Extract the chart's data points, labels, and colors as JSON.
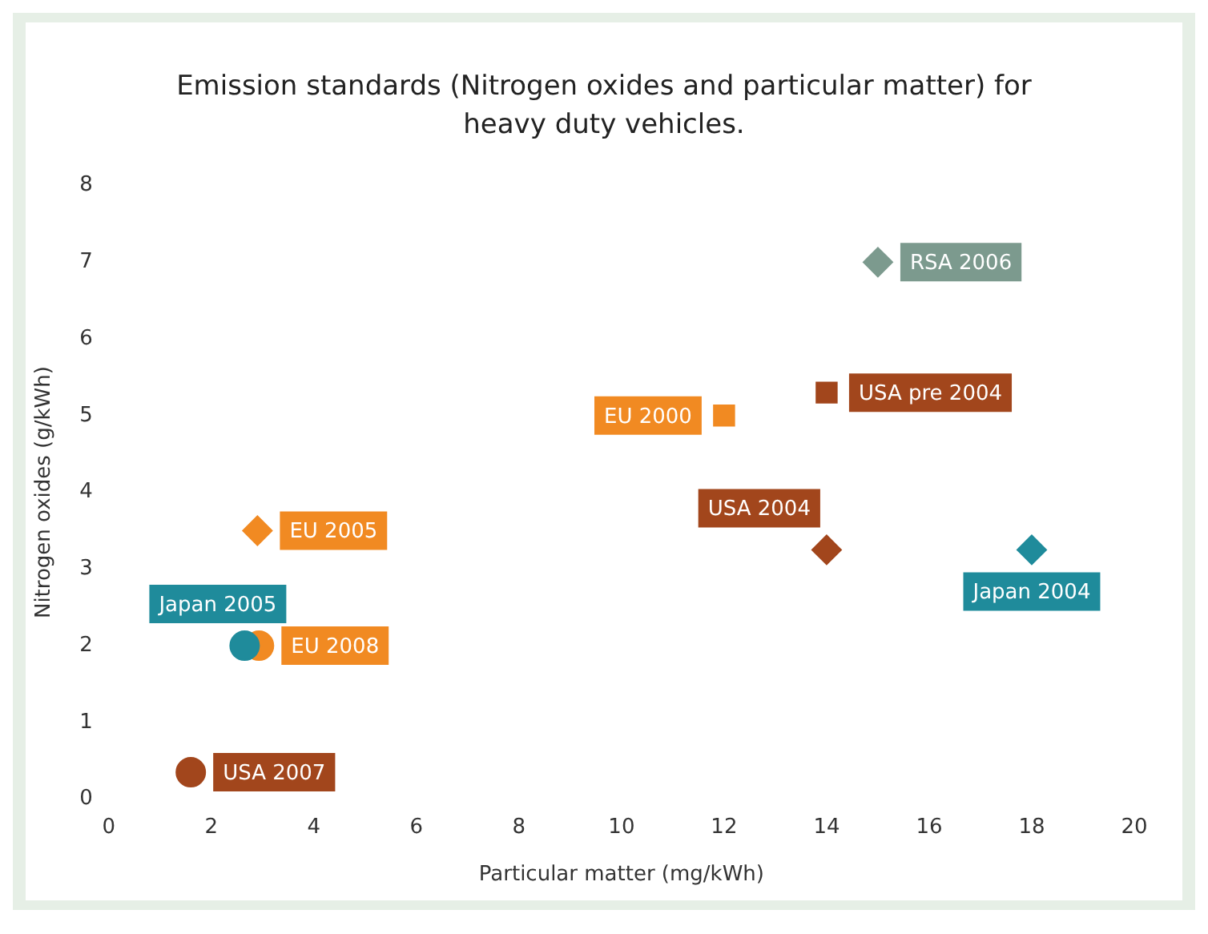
{
  "chart_data": {
    "type": "scatter",
    "title": "Emission standards (Nitrogen oxides and particular matter) for heavy duty vehicles.",
    "xlabel": "Particular matter (mg/kWh)",
    "ylabel": "Nitrogen oxides (g/kWh)",
    "xlim": [
      0,
      20
    ],
    "xticks": [
      0,
      2,
      4,
      6,
      8,
      10,
      12,
      14,
      16,
      18,
      20
    ],
    "ylim": [
      0,
      8
    ],
    "yticks": [
      0,
      1,
      2,
      3,
      4,
      5,
      6,
      7,
      8
    ],
    "grid": false,
    "legend": false,
    "series": [
      {
        "name": "RSA 2006",
        "color": "#7c9a8e",
        "marker": "diamond",
        "x": [
          15
        ],
        "values": [
          7
        ]
      },
      {
        "name": "USA pre 2004",
        "color": "#a2461c",
        "marker": "square",
        "x": [
          14
        ],
        "values": [
          5.3
        ]
      },
      {
        "name": "EU 2000",
        "color": "#f18a22",
        "marker": "square",
        "x": [
          12
        ],
        "values": [
          5
        ]
      },
      {
        "name": "USA 2004",
        "color": "#a2461c",
        "marker": "diamond",
        "x": [
          14
        ],
        "values": [
          3.25
        ]
      },
      {
        "name": "Japan 2004",
        "color": "#1f8b9b",
        "marker": "diamond",
        "x": [
          18
        ],
        "values": [
          3.25
        ]
      },
      {
        "name": "EU 2005",
        "color": "#f18a22",
        "marker": "diamond",
        "x": [
          2.9
        ],
        "values": [
          3.5
        ]
      },
      {
        "name": "Japan 2005",
        "color": "#1f8b9b",
        "marker": "circle",
        "x": [
          2.65
        ],
        "values": [
          2
        ]
      },
      {
        "name": "EU 2008",
        "color": "#f18a22",
        "marker": "circle",
        "x": [
          2.93
        ],
        "values": [
          2
        ]
      },
      {
        "name": "USA 2007",
        "color": "#a2461c",
        "marker": "circle",
        "x": [
          1.6
        ],
        "values": [
          0.35
        ]
      }
    ]
  }
}
